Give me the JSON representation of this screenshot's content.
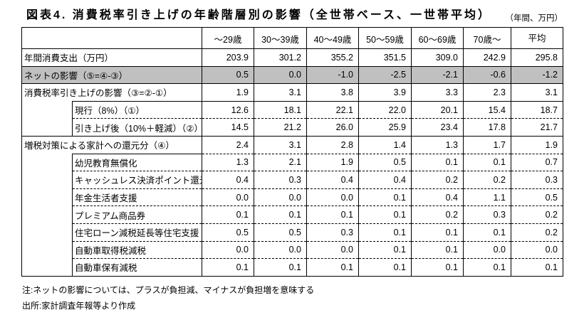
{
  "title": "図表4. 消費税率引き上げの年齢階層別の影響（全世帯ベース、一世帯平均）",
  "unit_note": "（年間、万円）",
  "colors": {
    "highlight_row_background": "#c0c0c0",
    "border": "#000000",
    "text": "#000000",
    "background": "#ffffff"
  },
  "table": {
    "column_headers": [
      "～29歳",
      "30～39歳",
      "40～49歳",
      "50～59歳",
      "60～69歳",
      "70歳～",
      "平均"
    ],
    "rows": [
      {
        "label": "年間消費支出（万円）",
        "indent": 0,
        "style": "normal",
        "sep": "solid",
        "values": [
          "203.9",
          "301.2",
          "355.2",
          "351.5",
          "309.0",
          "242.9",
          "295.8"
        ]
      },
      {
        "label": "ネットの影響（⑤=④-③）",
        "indent": 0,
        "style": "gray",
        "sep": "solid",
        "values": [
          "0.5",
          "0.0",
          "-1.0",
          "-2.5",
          "-2.1",
          "-0.6",
          "-1.2"
        ]
      },
      {
        "label": "消費税率引き上げの影響（③=②-①）",
        "indent": 0,
        "style": "group",
        "sep": "solid",
        "values": [
          "1.9",
          "3.1",
          "3.8",
          "3.9",
          "3.3",
          "2.3",
          "3.1"
        ]
      },
      {
        "label": "現行（8%）（①）",
        "indent": 1,
        "first_of_group": true,
        "group_size": 2,
        "sep": "dashed",
        "values": [
          "12.6",
          "18.1",
          "22.1",
          "22.0",
          "20.1",
          "15.4",
          "18.7"
        ]
      },
      {
        "label": "引き上げ後（10%＋軽減）（②）",
        "indent": 1,
        "sep": "solid",
        "values": [
          "14.5",
          "21.2",
          "26.0",
          "25.9",
          "23.4",
          "17.8",
          "21.7"
        ]
      },
      {
        "label": "増税対策による家計への還元分（④）",
        "indent": 0,
        "style": "group",
        "sep": "dashed",
        "values": [
          "2.4",
          "3.1",
          "2.8",
          "1.4",
          "1.3",
          "1.7",
          "1.9"
        ]
      },
      {
        "label": "幼児教育無償化",
        "indent": 1,
        "first_of_group": true,
        "group_size": 7,
        "sep": "dashed",
        "values": [
          "1.3",
          "2.1",
          "1.9",
          "0.5",
          "0.1",
          "0.1",
          "0.7"
        ]
      },
      {
        "label": "キャッシュレス決済ポイント還元",
        "indent": 1,
        "sep": "dashed",
        "values": [
          "0.4",
          "0.3",
          "0.4",
          "0.4",
          "0.2",
          "0.2",
          "0.3"
        ]
      },
      {
        "label": "年金生活者支援",
        "indent": 1,
        "sep": "dashed",
        "values": [
          "0.0",
          "0.0",
          "0.0",
          "0.1",
          "0.4",
          "1.1",
          "0.5"
        ]
      },
      {
        "label": "プレミアム商品券",
        "indent": 1,
        "sep": "dashed",
        "values": [
          "0.1",
          "0.1",
          "0.1",
          "0.1",
          "0.2",
          "0.3",
          "0.2"
        ]
      },
      {
        "label": "住宅ローン減税延長等住宅支援",
        "indent": 1,
        "sep": "dashed",
        "values": [
          "0.5",
          "0.5",
          "0.3",
          "0.1",
          "0.1",
          "0.1",
          "0.2"
        ]
      },
      {
        "label": "自動車取得税減税",
        "indent": 1,
        "sep": "dashed",
        "values": [
          "0.0",
          "0.0",
          "0.0",
          "0.1",
          "0.1",
          "0.0",
          "0.0"
        ]
      },
      {
        "label": "自動車保有減税",
        "indent": 1,
        "sep": "solid",
        "values": [
          "0.1",
          "0.1",
          "0.1",
          "0.1",
          "0.1",
          "0.1",
          "0.1"
        ]
      }
    ]
  },
  "notes": [
    "注:ネットの影響については、プラスが負担減、マイナスが負担増を意味する",
    "出所:家計調査年報等より作成"
  ]
}
